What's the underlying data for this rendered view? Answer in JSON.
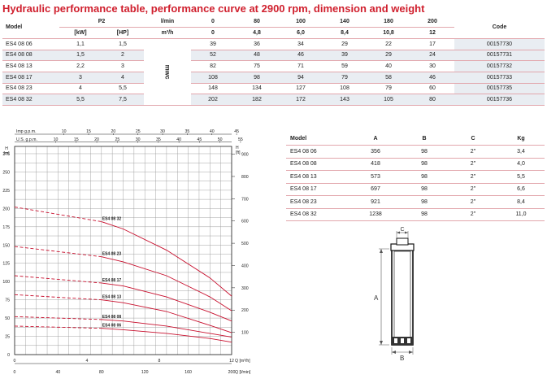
{
  "title": "Hydraulic performance table, performance curve at 2900 rpm, dimension and weight",
  "perf_table": {
    "model_header": "Model",
    "p2_header": "P2",
    "kw_header": "[kW]",
    "hp_header": "[HP]",
    "lmin_header": "l/min",
    "m3h_header": "m³/h",
    "code_header": "Code",
    "mwc_label": "mwc",
    "lmin_values": [
      "0",
      "80",
      "100",
      "140",
      "180",
      "200"
    ],
    "m3h_values": [
      "0",
      "4,8",
      "6,0",
      "8,4",
      "10,8",
      "12"
    ],
    "rows": [
      {
        "model": "ES4 08 06",
        "kw": "1,1",
        "hp": "1,5",
        "h": [
          "39",
          "36",
          "34",
          "29",
          "22",
          "17"
        ],
        "code": "00157730"
      },
      {
        "model": "ES4 08 08",
        "kw": "1,5",
        "hp": "2",
        "h": [
          "52",
          "48",
          "46",
          "39",
          "29",
          "24"
        ],
        "code": "00157731"
      },
      {
        "model": "ES4 08 13",
        "kw": "2,2",
        "hp": "3",
        "h": [
          "82",
          "75",
          "71",
          "59",
          "40",
          "30"
        ],
        "code": "00157732"
      },
      {
        "model": "ES4 08 17",
        "kw": "3",
        "hp": "4",
        "h": [
          "108",
          "98",
          "94",
          "79",
          "58",
          "46"
        ],
        "code": "00157733"
      },
      {
        "model": "ES4 08 23",
        "kw": "4",
        "hp": "5,5",
        "h": [
          "148",
          "134",
          "127",
          "108",
          "79",
          "60"
        ],
        "code": "00157735"
      },
      {
        "model": "ES4 08 32",
        "kw": "5,5",
        "hp": "7,5",
        "h": [
          "202",
          "182",
          "172",
          "143",
          "105",
          "80"
        ],
        "code": "00157736"
      }
    ]
  },
  "dims_table": {
    "headers": [
      "Model",
      "A",
      "B",
      "C",
      "Kg"
    ],
    "rows": [
      [
        "ES4 08 06",
        "356",
        "98",
        "2\"",
        "3,4"
      ],
      [
        "ES4 08 08",
        "418",
        "98",
        "2\"",
        "4,0"
      ],
      [
        "ES4 08 13",
        "573",
        "98",
        "2\"",
        "5,5"
      ],
      [
        "ES4 08 17",
        "697",
        "98",
        "2\"",
        "6,6"
      ],
      [
        "ES4 08 23",
        "921",
        "98",
        "2\"",
        "8,4"
      ],
      [
        "ES4 08 32",
        "1238",
        "98",
        "2\"",
        "11,0"
      ]
    ]
  },
  "pump_figure": {
    "label_a": "A",
    "label_b": "B",
    "label_c": "C"
  },
  "chart_data": {
    "type": "line",
    "top_axis_labels": [
      "Imp g.p.m.",
      "U.S. g.p.m."
    ],
    "imp_gpm_ticks": [
      "10",
      "15",
      "20",
      "25",
      "30",
      "35",
      "40",
      "45"
    ],
    "us_gpm_ticks": [
      "10",
      "15",
      "20",
      "25",
      "30",
      "35",
      "40",
      "45",
      "50",
      "55"
    ],
    "left_axis_label": "H [m]",
    "right_axis_label": "H [ft]",
    "x_m3h_label": "Q [m³/h]",
    "x_lmin_label": "Q [l/min]",
    "x_m3h_ticks": [
      "0",
      "4",
      "8",
      "12"
    ],
    "x_lmin_ticks": [
      "0",
      "40",
      "80",
      "120",
      "160",
      "200"
    ],
    "x_lmin_range": [
      0,
      200
    ],
    "y_m_ticks": [
      "0",
      "25",
      "50",
      "75",
      "100",
      "125",
      "150",
      "175",
      "200",
      "225",
      "250",
      "275"
    ],
    "y_m_range": [
      0,
      285
    ],
    "y_ft_ticks": [
      "100",
      "200",
      "300",
      "400",
      "500",
      "600",
      "700",
      "800",
      "900"
    ],
    "grid": true,
    "x": [
      0,
      80,
      100,
      140,
      180,
      200
    ],
    "series": [
      {
        "name": "ES4 08 06",
        "values": [
          39,
          36,
          34,
          29,
          22,
          17
        ]
      },
      {
        "name": "ES4 08 08",
        "values": [
          52,
          48,
          46,
          39,
          29,
          24
        ]
      },
      {
        "name": "ES4 08 13",
        "values": [
          82,
          75,
          71,
          59,
          40,
          30
        ]
      },
      {
        "name": "ES4 08 17",
        "values": [
          108,
          98,
          94,
          79,
          58,
          46
        ]
      },
      {
        "name": "ES4 08 23",
        "values": [
          148,
          134,
          127,
          108,
          79,
          60
        ]
      },
      {
        "name": "ES4 08 32",
        "values": [
          202,
          182,
          172,
          143,
          105,
          80
        ]
      }
    ],
    "curve_color": "#c8102e"
  }
}
